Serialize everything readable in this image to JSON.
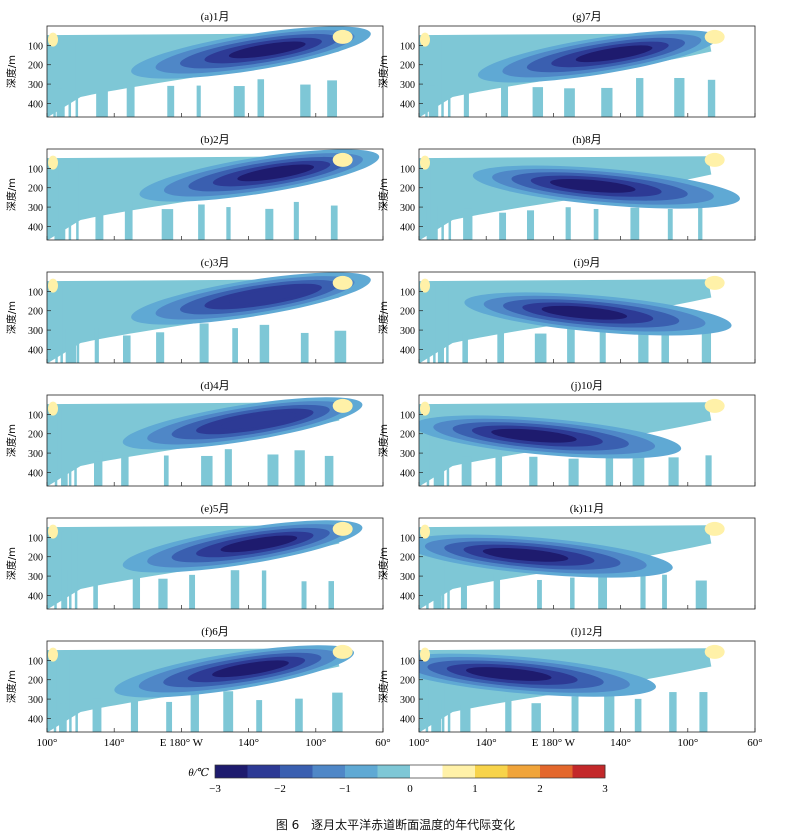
{
  "caption": {
    "number": "图 6",
    "title": "逐月太平洋赤道断面温度的年代际变化"
  },
  "colorbar": {
    "label": "θ/℃",
    "ticks": [
      "−3",
      "−2",
      "−1",
      "0",
      "1",
      "2",
      "3"
    ],
    "range": [
      -3,
      3
    ],
    "levels": [
      -3.0,
      -2.5,
      -2.0,
      -1.5,
      -1.0,
      -0.5,
      0.0,
      0.5,
      1.0,
      1.5,
      2.0,
      2.5,
      3.0
    ],
    "colors": [
      "#1e1b6e",
      "#2d3a95",
      "#3a5fb0",
      "#4f87c7",
      "#5fa9d4",
      "#7ec7d6",
      "#ffffff",
      "#fff1a8",
      "#f7d34a",
      "#f0a43a",
      "#e3672c",
      "#c3282a"
    ]
  },
  "axes": {
    "ylabel": "深度/m",
    "yticks": [
      "100",
      "200",
      "300",
      "400"
    ],
    "xticks_left": [
      "100°",
      "140°",
      "E 180° W",
      "140°",
      "100°",
      "60°"
    ],
    "xticks_right": [
      "100°",
      "140°",
      "E 180° W",
      "140°",
      "100°",
      "60°"
    ]
  },
  "chart_data": [
    {
      "type": "heatmap",
      "title": "(a)1月",
      "xlabel": "",
      "ylabel": "深度/m",
      "xlim": [
        "100°E",
        "60°W"
      ],
      "ylim": [
        0,
        470
      ],
      "anomaly_core": {
        "longitude": "125°W",
        "depth": 80,
        "value": -2.8
      }
    },
    {
      "type": "heatmap",
      "title": "(b)2月",
      "xlabel": "",
      "ylabel": "深度/m",
      "xlim": [
        "100°E",
        "60°W"
      ],
      "ylim": [
        0,
        470
      ],
      "anomaly_core": {
        "longitude": "120°W",
        "depth": 80,
        "value": -2.6
      }
    },
    {
      "type": "heatmap",
      "title": "(c)3月",
      "xlabel": "",
      "ylabel": "深度/m",
      "xlim": [
        "100°E",
        "60°W"
      ],
      "ylim": [
        0,
        470
      ],
      "anomaly_core": {
        "longitude": "125°W",
        "depth": 80,
        "value": -2.4
      }
    },
    {
      "type": "heatmap",
      "title": "(d)4月",
      "xlabel": "",
      "ylabel": "深度/m",
      "xlim": [
        "100°E",
        "60°W"
      ],
      "ylim": [
        0,
        470
      ],
      "anomaly_core": {
        "longitude": "130°W",
        "depth": 90,
        "value": -2.3
      }
    },
    {
      "type": "heatmap",
      "title": "(e)5月",
      "xlabel": "",
      "ylabel": "深度/m",
      "xlim": [
        "100°E",
        "60°W"
      ],
      "ylim": [
        0,
        470
      ],
      "anomaly_core": {
        "longitude": "130°W",
        "depth": 90,
        "value": -2.6
      }
    },
    {
      "type": "heatmap",
      "title": "(f)6月",
      "xlabel": "",
      "ylabel": "深度/m",
      "xlim": [
        "100°E",
        "60°W"
      ],
      "ylim": [
        0,
        470
      ],
      "anomaly_core": {
        "longitude": "135°W",
        "depth": 100,
        "value": -2.8
      }
    },
    {
      "type": "heatmap",
      "title": "(g)7月",
      "xlabel": "",
      "ylabel": "深度/m",
      "xlim": [
        "100°E",
        "60°W"
      ],
      "ylim": [
        0,
        470
      ],
      "anomaly_core": {
        "longitude": "140°W",
        "depth": 100,
        "value": -2.8
      }
    },
    {
      "type": "heatmap",
      "title": "(h)8月",
      "xlabel": "",
      "ylabel": "深度/m",
      "xlim": [
        "100°E",
        "60°W"
      ],
      "ylim": [
        0,
        470
      ],
      "anomaly_core": {
        "longitude": "160°W",
        "depth": 150,
        "value": -2.6
      }
    },
    {
      "type": "heatmap",
      "title": "(i)9月",
      "xlabel": "",
      "ylabel": "深度/m",
      "xlim": [
        "100°E",
        "60°W"
      ],
      "ylim": [
        0,
        470
      ],
      "anomaly_core": {
        "longitude": "165°W",
        "depth": 170,
        "value": -2.7
      }
    },
    {
      "type": "heatmap",
      "title": "(j)10月",
      "xlabel": "",
      "ylabel": "深度/m",
      "xlim": [
        "100°E",
        "60°W"
      ],
      "ylim": [
        0,
        470
      ],
      "anomaly_core": {
        "longitude": "165°E",
        "depth": 170,
        "value": -2.9
      }
    },
    {
      "type": "heatmap",
      "title": "(k)11月",
      "xlabel": "",
      "ylabel": "深度/m",
      "xlim": [
        "100°E",
        "60°W"
      ],
      "ylim": [
        0,
        470
      ],
      "anomaly_core": {
        "longitude": "160°E",
        "depth": 150,
        "value": -2.9
      }
    },
    {
      "type": "heatmap",
      "title": "(l)12月",
      "xlabel": "",
      "ylabel": "深度/m",
      "xlim": [
        "100°E",
        "60°W"
      ],
      "ylim": [
        0,
        470
      ],
      "anomaly_core": {
        "longitude": "150°E",
        "depth": 130,
        "value": -2.8
      }
    }
  ]
}
